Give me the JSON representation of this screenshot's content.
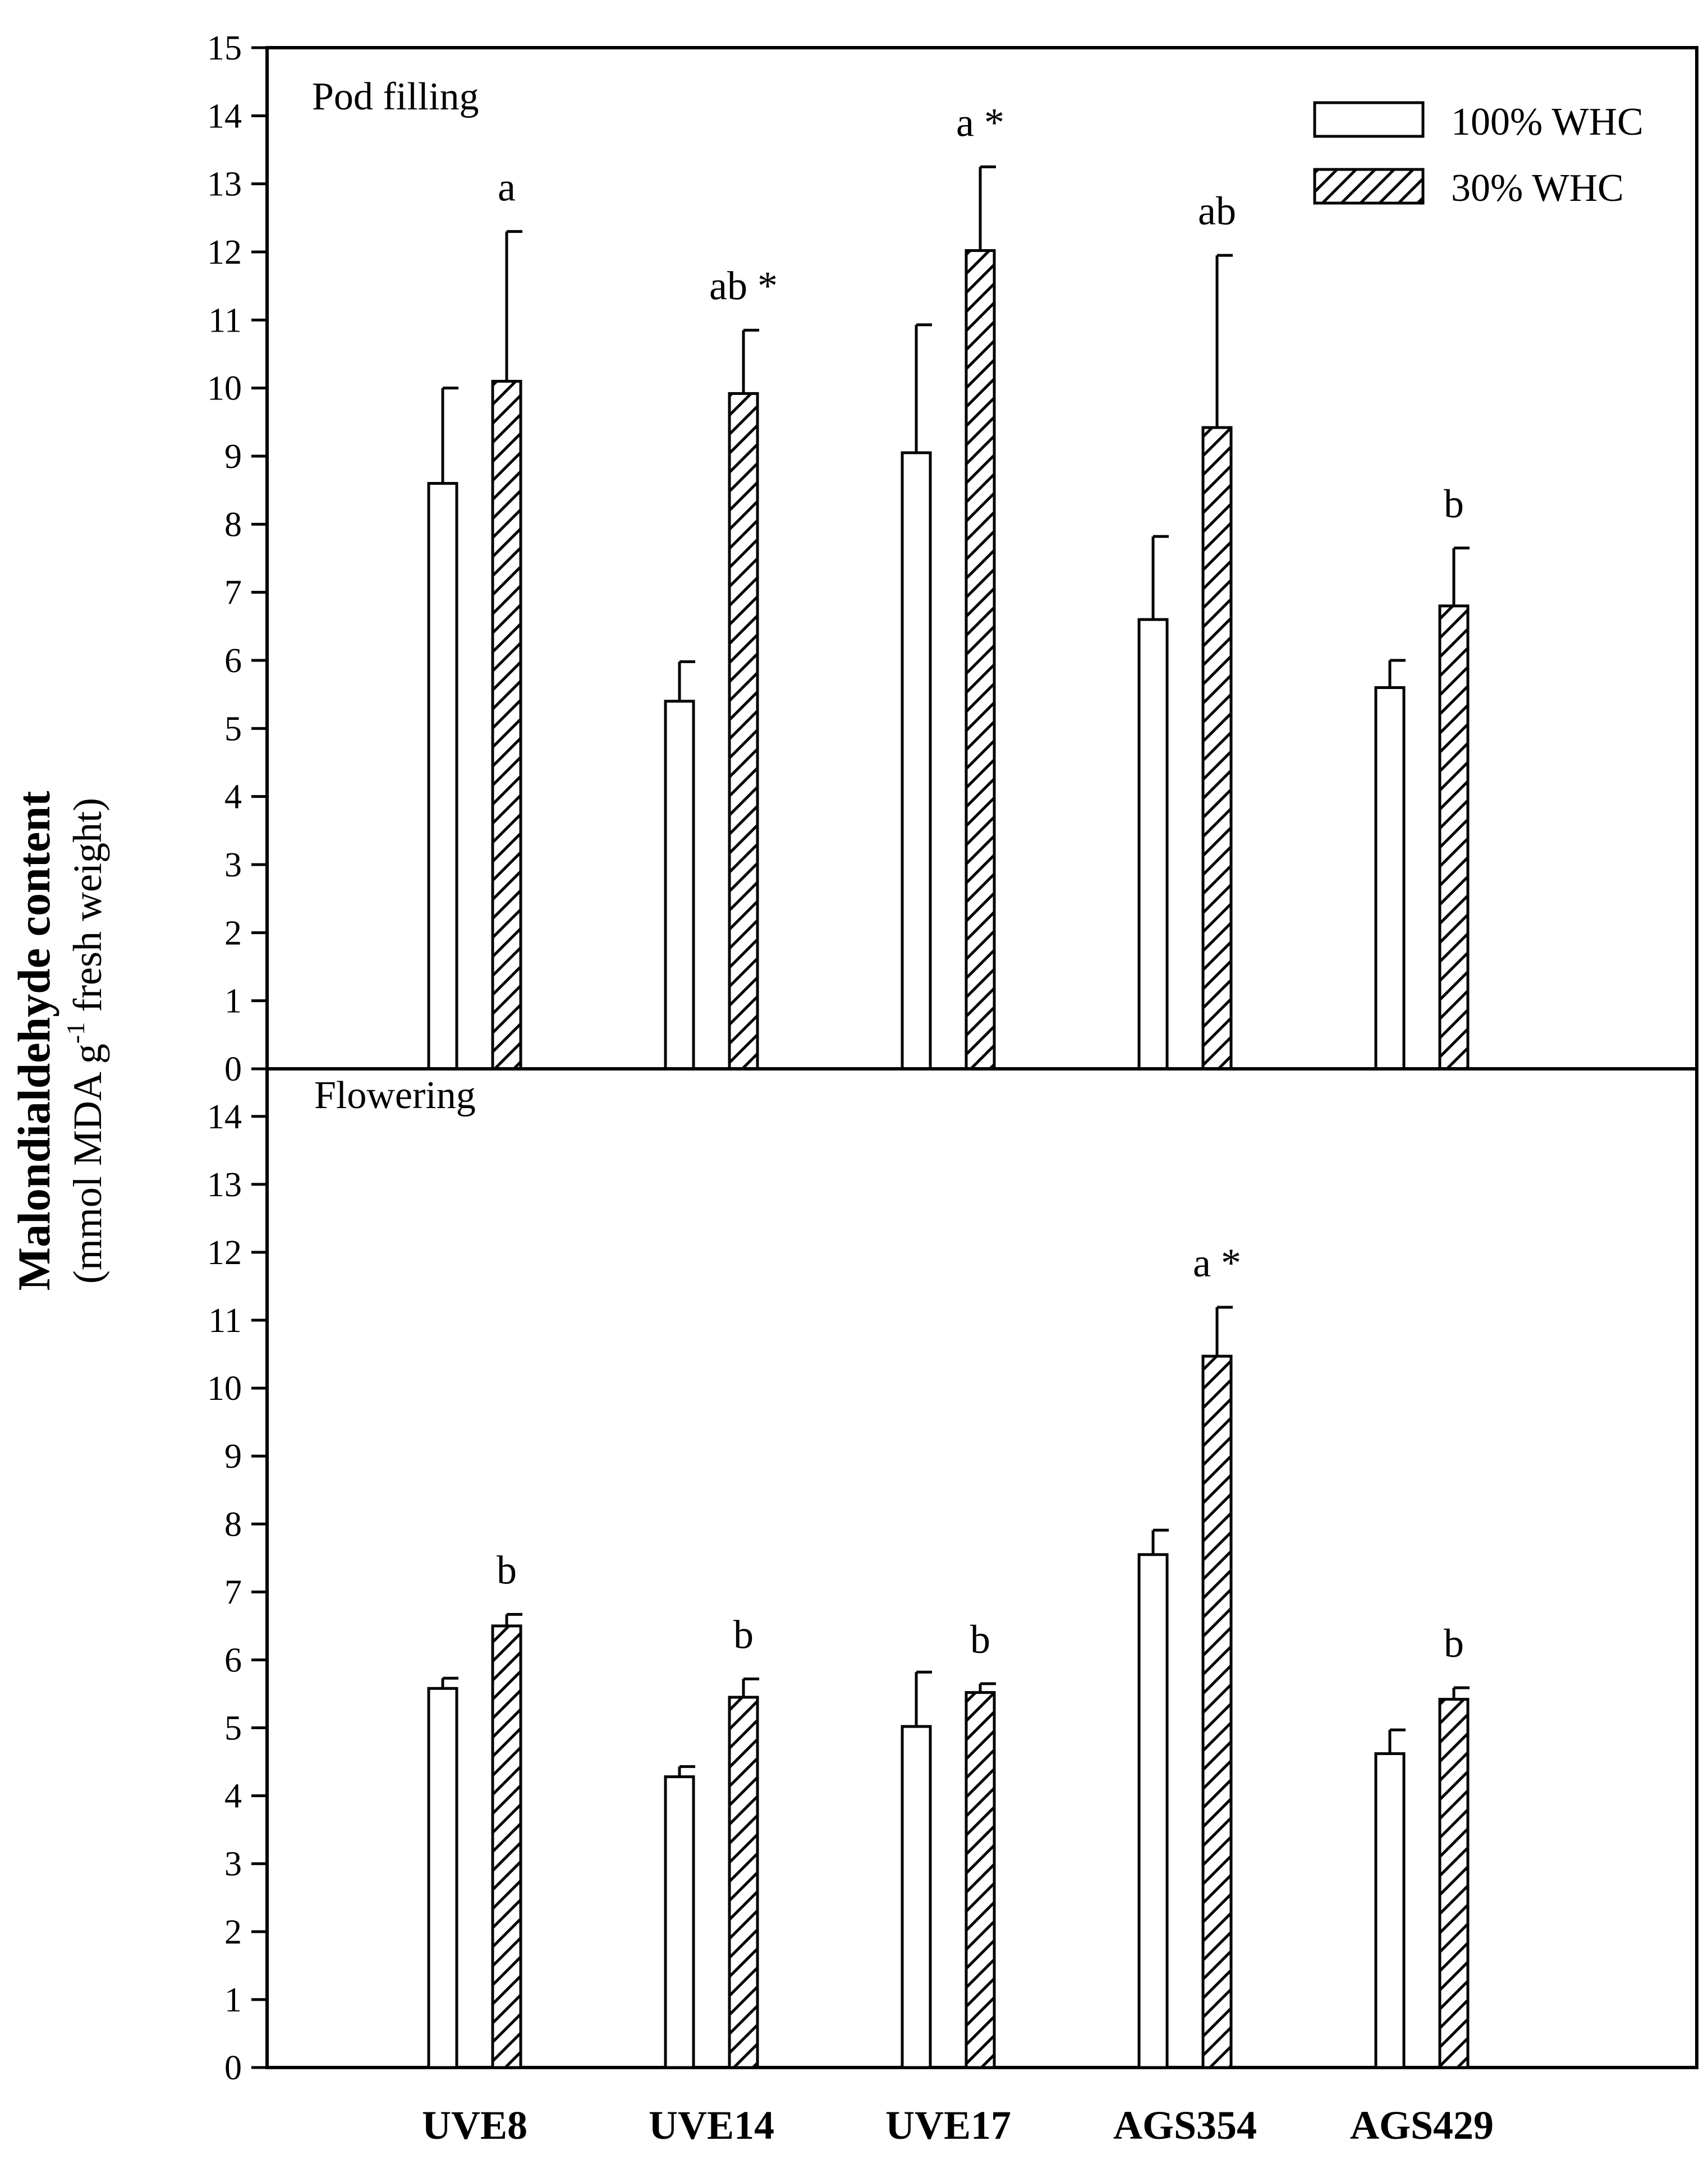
{
  "chart_data": [
    {
      "type": "bar",
      "panel": "top",
      "title": "Pod filling",
      "categories": [
        "UVE8",
        "UVE14",
        "UVE17",
        "AGS354",
        "AGS429"
      ],
      "series": [
        {
          "name": "100% WHC",
          "values": [
            8.6,
            5.4,
            9.05,
            6.6,
            5.6
          ],
          "errors": [
            1.4,
            0.58,
            1.88,
            1.22,
            0.4
          ]
        },
        {
          "name": "30% WHC",
          "values": [
            10.1,
            9.92,
            12.02,
            9.42,
            6.8
          ],
          "errors": [
            2.2,
            0.93,
            1.23,
            2.53,
            0.85
          ]
        }
      ],
      "annotations": [
        "a",
        "ab *",
        "a *",
        "ab",
        "b"
      ],
      "ylim": [
        0,
        15
      ],
      "yticks": [
        0,
        1,
        2,
        3,
        4,
        5,
        6,
        7,
        8,
        9,
        10,
        11,
        12,
        13,
        14,
        15
      ]
    },
    {
      "type": "bar",
      "panel": "bottom",
      "title": "Flowering",
      "categories": [
        "UVE8",
        "UVE14",
        "UVE17",
        "AGS354",
        "AGS429"
      ],
      "series": [
        {
          "name": "100% WHC",
          "values": [
            5.58,
            4.28,
            5.02,
            7.55,
            4.62
          ],
          "errors": [
            0.15,
            0.15,
            0.8,
            0.36,
            0.35
          ]
        },
        {
          "name": "30% WHC",
          "values": [
            6.5,
            5.45,
            5.52,
            10.47,
            5.42
          ],
          "errors": [
            0.17,
            0.27,
            0.13,
            0.72,
            0.17
          ]
        }
      ],
      "annotations": [
        "b",
        "b",
        "b",
        "a *",
        "b"
      ],
      "ylim": [
        0,
        14.7
      ],
      "yticks": [
        0,
        1,
        2,
        3,
        4,
        5,
        6,
        7,
        8,
        9,
        10,
        11,
        12,
        13,
        14
      ]
    }
  ],
  "ylabel": {
    "main": "Malondialdehyde content",
    "unit_before": "(mmol MDA g",
    "unit_sup": "-1",
    "unit_after": " fresh weight)"
  },
  "legend": [
    {
      "label": "100% WHC",
      "pattern": "open"
    },
    {
      "label": "30% WHC",
      "pattern": "hatched"
    }
  ],
  "x_labels": [
    "UVE8",
    "UVE14",
    "UVE17",
    "AGS354",
    "AGS429"
  ]
}
